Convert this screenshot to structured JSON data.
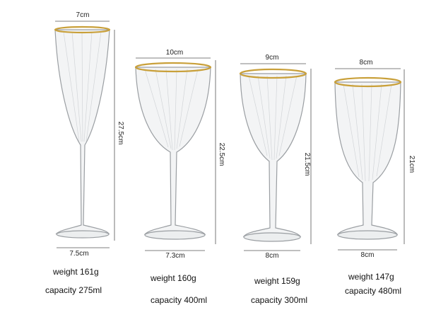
{
  "products": [
    {
      "top_width": "7cm",
      "height": "27.5cm",
      "bottom_width": "7.5cm",
      "weight": "weight 161g",
      "capacity": "capacity 275ml"
    },
    {
      "top_width": "10cm",
      "height": "22.5cm",
      "bottom_width": "7.3cm",
      "weight": "weight 160g",
      "capacity": "capacity 400ml"
    },
    {
      "top_width": "9cm",
      "height": "21.5cm",
      "bottom_width": "8cm",
      "weight": "weight 159g",
      "capacity": "capacity 300ml"
    },
    {
      "top_width": "8cm",
      "height": "21cm",
      "bottom_width": "8cm",
      "weight": "weight 147g",
      "capacity": "capacity 480ml"
    }
  ]
}
